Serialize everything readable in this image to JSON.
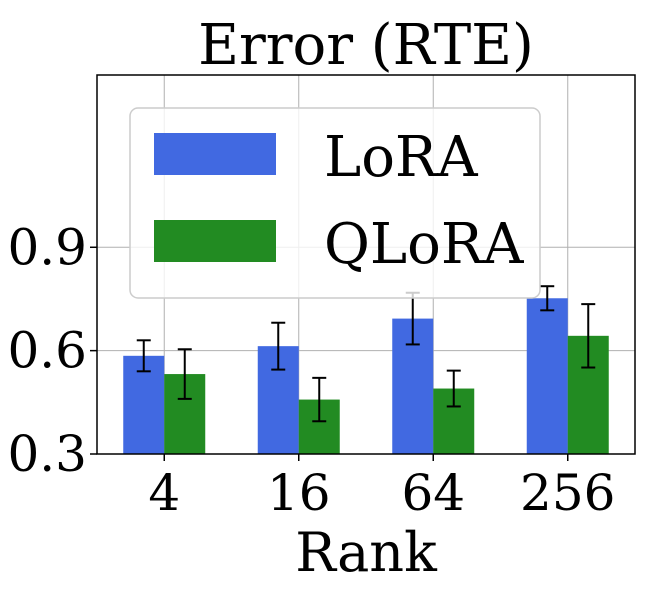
{
  "chart_data": {
    "type": "bar",
    "title": "Error (RTE)",
    "xlabel": "Rank",
    "ylabel": "",
    "categories": [
      "4",
      "16",
      "64",
      "256"
    ],
    "ylim": [
      0.3,
      1.4
    ],
    "yticks": [
      "0.3",
      "0.6",
      "0.9"
    ],
    "grid": true,
    "legend_position": "top-left",
    "series": [
      {
        "name": "LoRA",
        "color": "#4169E1",
        "values": [
          0.585,
          0.613,
          0.693,
          0.752
        ],
        "errors": [
          0.045,
          0.068,
          0.075,
          0.035
        ]
      },
      {
        "name": "QLoRA",
        "color": "#228B22",
        "values": [
          0.532,
          0.458,
          0.49,
          0.643
        ],
        "errors": [
          0.072,
          0.063,
          0.052,
          0.092
        ]
      }
    ]
  }
}
